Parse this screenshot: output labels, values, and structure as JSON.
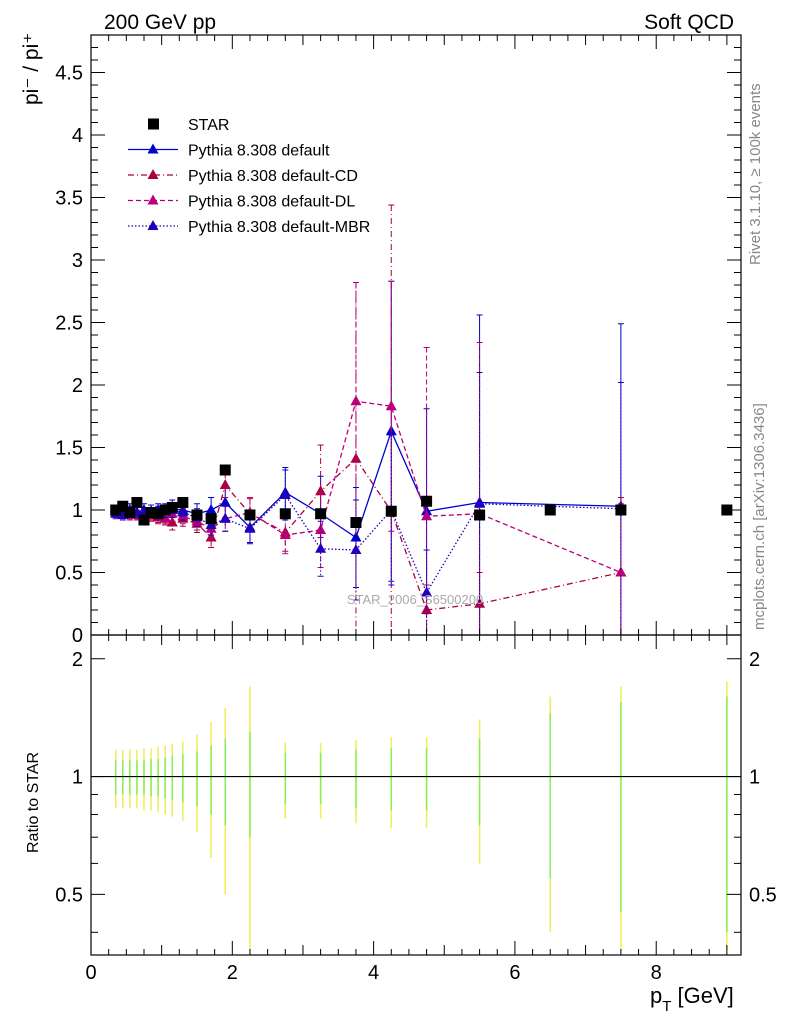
{
  "header": {
    "left_label": "200 GeV pp",
    "right_label": "Soft QCD"
  },
  "side_text": {
    "rivet": "Rivet 3.1.10, ≥ 100k events",
    "mcplots": "mcplots.cern.ch [arXiv:1306.3436]"
  },
  "watermark": "STAR_2006_S6500200",
  "colors": {
    "star": "#000000",
    "default": "#0000cc",
    "cd": "#aa0044",
    "dl": "#bb0077",
    "mbr": "#2200bb",
    "band_green": "#88ee55",
    "band_yellow": "#eeee55"
  },
  "chart_data": [
    {
      "type": "scatter",
      "ylabel": "pi⁻ / pi⁺",
      "ylim": [
        0,
        4.8
      ],
      "xlim": [
        0,
        9.2
      ],
      "yticks": [
        "0",
        "0.5",
        "1",
        "1.5",
        "2",
        "2.5",
        "3",
        "3.5",
        "4",
        "4.5"
      ],
      "legend_position": "top-left",
      "series": [
        {
          "name": "STAR",
          "style": "square",
          "x": [
            0.35,
            0.45,
            0.55,
            0.65,
            0.75,
            0.85,
            0.95,
            1.05,
            1.15,
            1.3,
            1.5,
            1.7,
            1.9,
            2.25,
            2.75,
            3.25,
            3.75,
            4.25,
            4.75,
            5.5,
            6.5,
            7.5,
            9.0
          ],
          "y": [
            1.0,
            1.03,
            0.98,
            1.06,
            0.92,
            0.98,
            0.97,
            1.0,
            1.02,
            1.06,
            0.96,
            0.93,
            1.32,
            0.96,
            0.97,
            0.97,
            0.9,
            0.99,
            1.07,
            0.96,
            1.0,
            1.0,
            1.0
          ]
        },
        {
          "name": "Pythia 8.308 default",
          "style": "solid",
          "x": [
            0.35,
            0.45,
            0.55,
            0.65,
            0.75,
            0.85,
            0.95,
            1.05,
            1.15,
            1.3,
            1.5,
            1.7,
            1.9,
            2.25,
            2.75,
            3.25,
            3.75,
            4.25,
            4.75,
            5.5,
            7.5
          ],
          "y": [
            0.99,
            0.99,
            1.0,
            0.98,
            1.0,
            0.99,
            1.0,
            0.99,
            1.01,
            1.0,
            0.97,
            1.0,
            1.06,
            0.86,
            1.14,
            0.97,
            0.78,
            1.63,
            0.99,
            1.06,
            1.03
          ],
          "err": [
            0.05,
            0.05,
            0.05,
            0.05,
            0.05,
            0.05,
            0.05,
            0.06,
            0.07,
            0.07,
            0.08,
            0.1,
            0.12,
            0.12,
            0.2,
            0.3,
            0.4,
            1.2,
            0.82,
            1.5,
            1.46
          ]
        },
        {
          "name": "Pythia 8.308 default-CD",
          "style": "dashdot",
          "x": [
            0.35,
            0.45,
            0.55,
            0.65,
            0.75,
            0.85,
            0.95,
            1.05,
            1.15,
            1.3,
            1.5,
            1.7,
            1.9,
            2.25,
            2.75,
            3.25,
            3.75,
            4.25,
            4.75,
            5.5,
            7.5
          ],
          "y": [
            0.99,
            0.98,
            0.97,
            0.96,
            0.95,
            0.96,
            0.94,
            0.93,
            0.9,
            0.93,
            0.89,
            0.78,
            1.2,
            0.97,
            0.82,
            1.15,
            1.41,
            0.99,
            0.2,
            0.25,
            0.5
          ],
          "err": [
            0.04,
            0.04,
            0.04,
            0.04,
            0.04,
            0.05,
            0.05,
            0.05,
            0.06,
            0.06,
            0.07,
            0.08,
            0.1,
            0.12,
            0.15,
            0.37,
            1.41,
            2.45,
            0.2,
            0.25,
            0.6
          ]
        },
        {
          "name": "Pythia 8.308 default-DL",
          "style": "dashed",
          "x": [
            0.35,
            0.45,
            0.55,
            0.65,
            0.75,
            0.85,
            0.95,
            1.05,
            1.15,
            1.3,
            1.5,
            1.7,
            1.9,
            2.25,
            2.75,
            3.25,
            3.75,
            4.25,
            4.75,
            5.5,
            7.5
          ],
          "y": [
            0.98,
            0.97,
            0.96,
            0.96,
            0.95,
            0.97,
            0.95,
            0.94,
            0.97,
            0.95,
            0.91,
            0.85,
            0.93,
            0.98,
            0.8,
            0.84,
            1.87,
            1.83,
            0.95,
            0.97,
            0.5
          ],
          "err": [
            0.04,
            0.04,
            0.04,
            0.04,
            0.04,
            0.05,
            0.05,
            0.05,
            0.06,
            0.06,
            0.07,
            0.08,
            0.1,
            0.12,
            0.15,
            0.3,
            0.95,
            1.0,
            1.35,
            1.37,
            0.55
          ]
        },
        {
          "name": "Pythia 8.308 default-MBR",
          "style": "dotted",
          "x": [
            0.35,
            0.45,
            0.55,
            0.65,
            0.75,
            0.85,
            0.95,
            1.05,
            1.15,
            1.3,
            1.5,
            1.7,
            1.9,
            2.25,
            2.75,
            3.25,
            3.75,
            4.25,
            4.75,
            5.5,
            7.5
          ],
          "y": [
            0.97,
            0.96,
            0.98,
            0.98,
            0.97,
            0.99,
            0.98,
            0.99,
            1.0,
            0.98,
            0.94,
            0.88,
            0.93,
            0.85,
            1.12,
            0.69,
            0.68,
            1.0,
            0.34,
            1.05,
            1.01
          ],
          "err": [
            0.04,
            0.04,
            0.04,
            0.04,
            0.04,
            0.05,
            0.05,
            0.05,
            0.06,
            0.06,
            0.07,
            0.08,
            0.1,
            0.12,
            0.2,
            0.22,
            0.4,
            0.6,
            0.34,
            1.05,
            1.01
          ]
        }
      ]
    },
    {
      "type": "line",
      "ylabel": "Ratio to STAR",
      "xlabel": "p_T [GeV]",
      "xlim": [
        0,
        9.2
      ],
      "ylim": [
        0.35,
        2.3
      ],
      "yscale": "log",
      "yticks": [
        "0.5",
        "1",
        "2"
      ],
      "xticks": [
        "0",
        "2",
        "4",
        "6",
        "8"
      ],
      "reference_line": 1.0,
      "uncertainty_bands": {
        "x": [
          0.35,
          0.45,
          0.55,
          0.65,
          0.75,
          0.85,
          0.95,
          1.05,
          1.15,
          1.3,
          1.5,
          1.7,
          1.9,
          2.25,
          2.75,
          3.25,
          3.75,
          4.25,
          4.75,
          5.5,
          6.5,
          7.5,
          9.0
        ],
        "stat_rel": [
          0.1,
          0.1,
          0.1,
          0.1,
          0.1,
          0.11,
          0.11,
          0.12,
          0.13,
          0.14,
          0.16,
          0.2,
          0.25,
          0.3,
          0.15,
          0.15,
          0.17,
          0.18,
          0.18,
          0.25,
          0.45,
          0.55,
          0.6
        ],
        "total_rel": [
          0.17,
          0.17,
          0.17,
          0.17,
          0.18,
          0.18,
          0.19,
          0.2,
          0.21,
          0.23,
          0.28,
          0.38,
          0.5,
          0.7,
          0.22,
          0.22,
          0.24,
          0.26,
          0.26,
          0.4,
          0.6,
          0.7,
          0.75
        ]
      }
    }
  ]
}
